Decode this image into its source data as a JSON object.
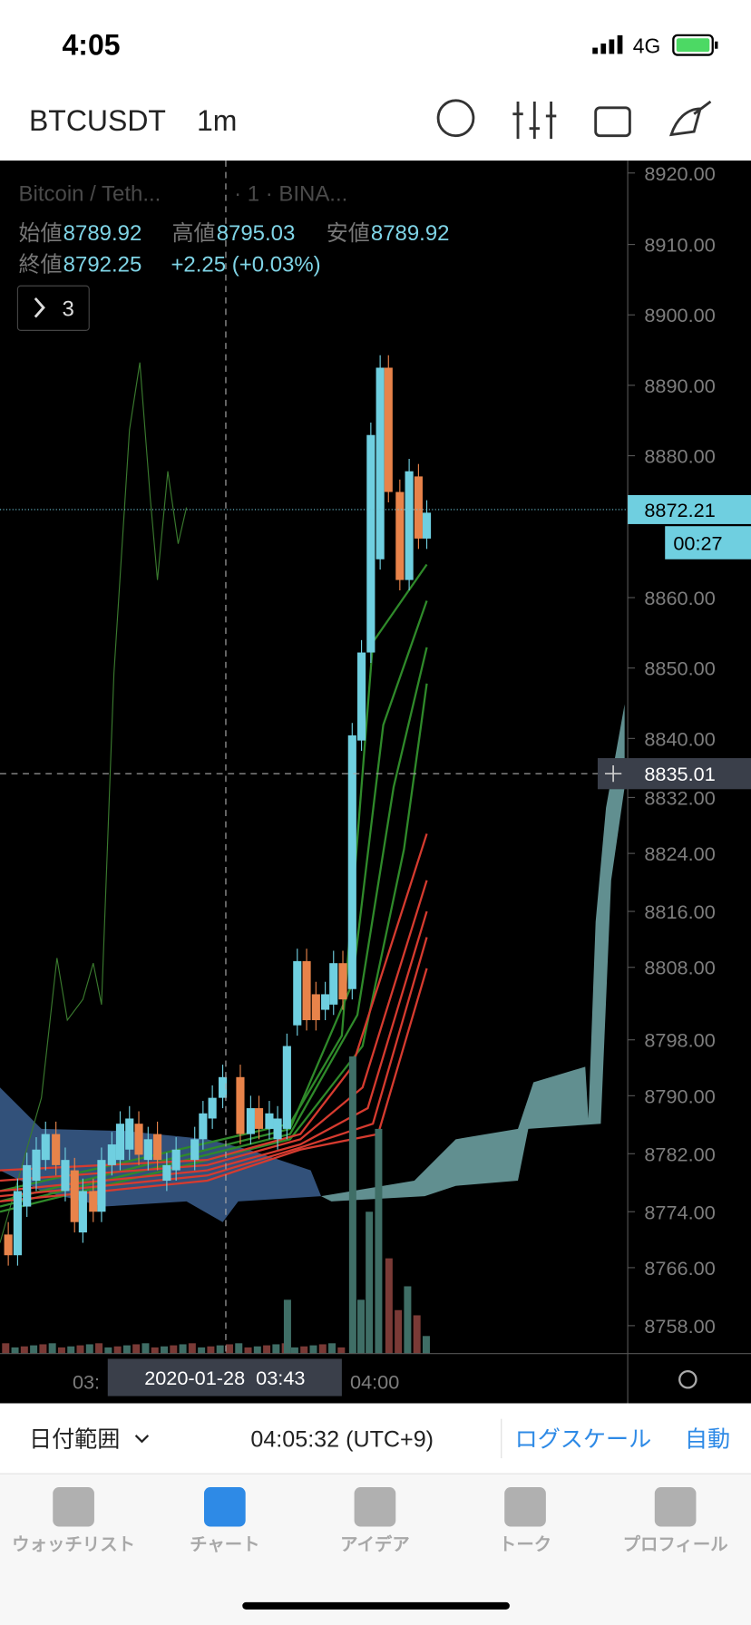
{
  "status_bar": {
    "time": "4:05",
    "network": "4G"
  },
  "header": {
    "symbol": "BTCUSDT",
    "interval": "1m"
  },
  "legend": {
    "name": "Bitcoin / Teth...",
    "source": "· 1 · BINA...",
    "open_label": "始値",
    "open": "8789.92",
    "high_label": "高値",
    "high": "8795.03",
    "low_label": "安値",
    "low": "8789.92",
    "close_label": "終値",
    "close": "8792.25",
    "change": "+2.25 (+0.03%)",
    "indicators": "3"
  },
  "price_axis": [
    "8920.00",
    "8910.00",
    "8900.00",
    "8890.00",
    "8880.00",
    "8860.00",
    "8850.00",
    "8840.00",
    "8832.00",
    "8824.00",
    "8816.00",
    "8808.00",
    "8798.00",
    "8790.00",
    "8782.00",
    "8774.00",
    "8766.00",
    "8758.00"
  ],
  "last_price": "8872.21",
  "countdown": "00:27",
  "crosshair_price": "8835.01",
  "time_axis": {
    "left": "03:",
    "right": "04:00",
    "crosshair": "2020-01-28  03:43"
  },
  "bottom_bar": {
    "date_range": "日付範囲",
    "clock": "04:05:32 (UTC+9)",
    "log_scale": "ログスケール",
    "auto": "自動"
  },
  "tabs": [
    "ウォッチリスト",
    "チャート",
    "アイデア",
    "トーク",
    "プロフィール"
  ]
}
